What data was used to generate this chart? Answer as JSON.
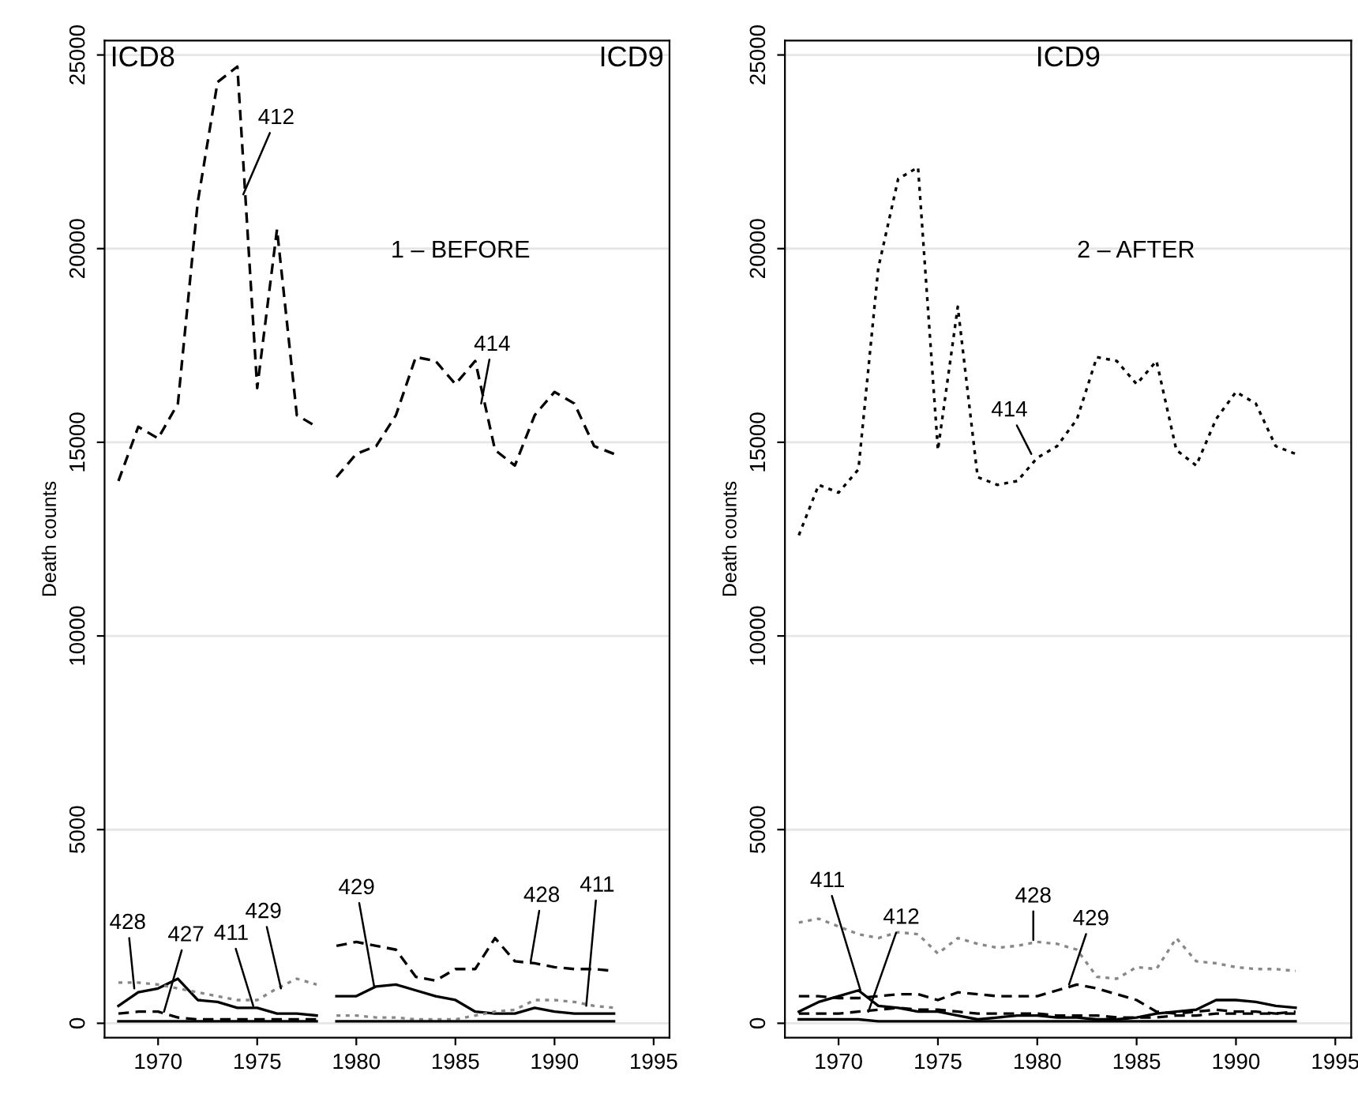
{
  "chart_data": [
    {
      "type": "line",
      "ylabel": "Death counts",
      "x": [
        1968,
        1969,
        1970,
        1971,
        1972,
        1973,
        1974,
        1975,
        1976,
        1977,
        1978,
        1979,
        1980,
        1981,
        1982,
        1983,
        1984,
        1985,
        1986,
        1987,
        1988,
        1989,
        1990,
        1991,
        1992,
        1993
      ],
      "series": [
        {
          "color": "#000000",
          "line_style": "dashed",
          "values": [
            14000,
            15400,
            15100,
            16000,
            21200,
            24300,
            24700,
            16400,
            20500,
            15700,
            15400,
            null,
            null,
            null,
            null,
            null,
            null,
            null,
            null,
            null,
            null,
            null,
            null,
            null,
            null,
            null
          ]
        },
        {
          "color": "#000000",
          "line_style": "dashed",
          "values": [
            null,
            null,
            null,
            null,
            null,
            null,
            null,
            null,
            null,
            null,
            null,
            14100,
            14700,
            14900,
            15700,
            17200,
            17100,
            16500,
            17100,
            14800,
            14400,
            15700,
            16300,
            16000,
            14900,
            14700
          ]
        },
        {
          "color": "#000000",
          "line_style": "solid",
          "values": [
            450,
            800,
            900,
            1150,
            600,
            550,
            400,
            400,
            250,
            250,
            200,
            null,
            null,
            null,
            null,
            null,
            null,
            null,
            null,
            null,
            null,
            null,
            null,
            null,
            null,
            null
          ]
        },
        {
          "color": "#000000",
          "line_style": "solid",
          "values": [
            null,
            null,
            null,
            null,
            null,
            null,
            null,
            null,
            null,
            null,
            null,
            700,
            700,
            950,
            1000,
            850,
            700,
            600,
            300,
            250,
            250,
            400,
            300,
            250,
            250,
            250
          ]
        },
        {
          "color": "#888888",
          "line_style": "dotted",
          "values": [
            1050,
            1050,
            1000,
            900,
            800,
            700,
            600,
            600,
            900,
            1150,
            1000,
            null,
            null,
            null,
            null,
            null,
            null,
            null,
            null,
            null,
            null,
            null,
            null,
            null,
            null,
            null
          ]
        },
        {
          "color": "#000000",
          "line_style": "dashed",
          "values": [
            null,
            null,
            null,
            null,
            null,
            null,
            null,
            null,
            null,
            null,
            null,
            2000,
            2100,
            2000,
            1900,
            1200,
            1100,
            1400,
            1400,
            2200,
            1600,
            1550,
            1450,
            1400,
            1400,
            1350
          ]
        },
        {
          "color": "#000000",
          "line_style": "dashed",
          "values": [
            250,
            300,
            300,
            150,
            100,
            100,
            100,
            100,
            100,
            100,
            100,
            null,
            null,
            null,
            null,
            null,
            null,
            null,
            null,
            null,
            null,
            null,
            null,
            null,
            null,
            null
          ]
        },
        {
          "color": "#888888",
          "line_style": "dotted",
          "values": [
            null,
            null,
            null,
            null,
            null,
            null,
            null,
            null,
            null,
            null,
            null,
            200,
            200,
            150,
            150,
            100,
            100,
            100,
            200,
            300,
            350,
            600,
            600,
            550,
            450,
            400
          ]
        },
        {
          "color": "#000000",
          "line_style": "solid",
          "values": [
            50,
            50,
            50,
            50,
            50,
            50,
            50,
            50,
            50,
            50,
            50,
            null,
            null,
            null,
            null,
            null,
            null,
            null,
            null,
            null,
            null,
            null,
            null,
            null,
            null,
            null
          ]
        },
        {
          "color": "#000000",
          "line_style": "solid",
          "values": [
            null,
            null,
            null,
            null,
            null,
            null,
            null,
            null,
            null,
            null,
            null,
            50,
            50,
            50,
            50,
            50,
            50,
            50,
            50,
            50,
            50,
            50,
            50,
            50,
            50,
            50
          ]
        }
      ],
      "annotations": [
        "ICD8",
        "ICD9",
        "1 – BEFORE",
        {
          "text": "412",
          "x": 1974.3,
          "y": 21400
        },
        {
          "text": "414",
          "x": 1986.3,
          "y": 16000
        },
        {
          "text": "428",
          "x": 1968.8,
          "y": 900
        },
        {
          "text": "427",
          "x": 1970.3,
          "y": 300
        },
        {
          "text": "411",
          "x": 1974.8,
          "y": 450
        },
        {
          "text": "429",
          "x": 1976.2,
          "y": 900
        },
        {
          "text": "429",
          "x": 1980.9,
          "y": 950
        },
        {
          "text": "428",
          "x": 1988.8,
          "y": 1600
        },
        {
          "text": "411",
          "x": 1991.6,
          "y": 450
        }
      ],
      "xlim": [
        1967.3,
        1995.8
      ],
      "ylim": [
        -370,
        25370
      ],
      "xticks": [
        1970,
        1975,
        1980,
        1985,
        1990,
        1995
      ],
      "yticks": [
        0,
        5000,
        10000,
        15000,
        20000,
        25000
      ],
      "grid": "y"
    },
    {
      "type": "line",
      "ylabel": "Death counts",
      "x": [
        1968,
        1969,
        1970,
        1971,
        1972,
        1973,
        1974,
        1975,
        1976,
        1977,
        1978,
        1979,
        1980,
        1981,
        1982,
        1983,
        1984,
        1985,
        1986,
        1987,
        1988,
        1989,
        1990,
        1991,
        1992,
        1993
      ],
      "series": [
        {
          "color": "#000000",
          "line_style": "dotted",
          "values": [
            12600,
            13900,
            13700,
            14300,
            19500,
            21800,
            22100,
            14800,
            18500,
            14100,
            13900,
            14000,
            14600,
            14900,
            15600,
            17200,
            17100,
            16500,
            17100,
            14800,
            14400,
            15600,
            16300,
            16000,
            14900,
            14700
          ]
        },
        {
          "color": "#888888",
          "line_style": "dotted",
          "values": [
            2600,
            2700,
            2500,
            2300,
            2200,
            2350,
            2300,
            1800,
            2200,
            2050,
            1950,
            2000,
            2100,
            2050,
            1900,
            1200,
            1150,
            1450,
            1400,
            2200,
            1600,
            1550,
            1450,
            1400,
            1400,
            1350
          ]
        },
        {
          "color": "#000000",
          "line_style": "dashed",
          "values": [
            700,
            700,
            650,
            650,
            700,
            750,
            750,
            600,
            800,
            750,
            700,
            700,
            700,
            850,
            1000,
            900,
            750,
            600,
            300,
            250,
            300,
            350,
            300,
            300,
            250,
            250
          ]
        },
        {
          "color": "#000000",
          "line_style": "solid",
          "values": [
            300,
            550,
            700,
            850,
            450,
            400,
            300,
            300,
            200,
            100,
            150,
            200,
            200,
            150,
            150,
            100,
            100,
            150,
            250,
            300,
            350,
            600,
            600,
            550,
            450,
            400
          ]
        },
        {
          "color": "#000000",
          "line_style": "dashed",
          "values": [
            250,
            250,
            250,
            300,
            350,
            400,
            350,
            350,
            300,
            250,
            250,
            250,
            250,
            200,
            200,
            200,
            150,
            150,
            150,
            200,
            200,
            250,
            250,
            250,
            250,
            300
          ]
        },
        {
          "color": "#000000",
          "line_style": "solid",
          "values": [
            100,
            100,
            100,
            100,
            50,
            50,
            50,
            50,
            50,
            50,
            50,
            50,
            50,
            50,
            50,
            50,
            50,
            50,
            50,
            50,
            50,
            50,
            50,
            50,
            50,
            50
          ]
        }
      ],
      "annotations": [
        "ICD9",
        "2 – AFTER",
        {
          "text": "414",
          "x": 1979.7,
          "y": 14700
        },
        {
          "text": "411",
          "x": 1971.1,
          "y": 850
        },
        {
          "text": "412",
          "x": 1971.5,
          "y": 300
        },
        {
          "text": "428",
          "x": 1979.8,
          "y": 2150
        },
        {
          "text": "429",
          "x": 1981.6,
          "y": 1000
        }
      ],
      "xlim": [
        1967.3,
        1995.8
      ],
      "ylim": [
        -370,
        25370
      ],
      "xticks": [
        1970,
        1975,
        1980,
        1985,
        1990,
        1995
      ],
      "yticks": [
        0,
        5000,
        10000,
        15000,
        20000,
        25000
      ],
      "grid": "y"
    }
  ]
}
